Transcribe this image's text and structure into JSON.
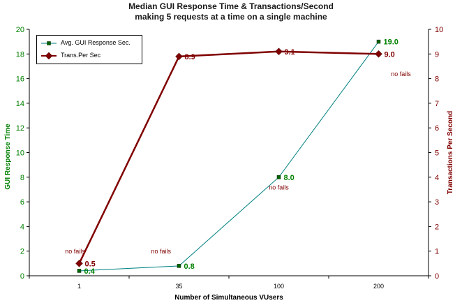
{
  "chart_data": {
    "type": "line",
    "title": "Median GUI Response Time & Transactions/Second",
    "subtitle": "making 5 requests at a time on a single machine",
    "xlabel": "Number of Simultaneous VUsers",
    "categories": [
      "1",
      "35",
      "100",
      "200"
    ],
    "y_left": {
      "label": "GUI Response Time",
      "range": [
        0,
        20
      ],
      "ticks": [
        0,
        2,
        4,
        6,
        8,
        10,
        12,
        14,
        16,
        18,
        20
      ],
      "color": "#008000"
    },
    "y_right": {
      "label": "Transactions Per Second",
      "range": [
        0,
        10
      ],
      "ticks": [
        0,
        1,
        2,
        3,
        4,
        5,
        6,
        7,
        8,
        9,
        10
      ],
      "color": "#800000"
    },
    "grid": false,
    "legend_position": "top-left",
    "series": [
      {
        "name": "Avg. GUI Response Sec.",
        "axis": "left",
        "color": "#008080",
        "label_color": "#008000",
        "values": [
          0.4,
          0.8,
          8.0,
          19.0
        ],
        "data_labels": [
          "0.4",
          "0.8",
          "8.0",
          "19.0"
        ]
      },
      {
        "name": "Trans.Per Sec",
        "axis": "right",
        "color": "#800000",
        "label_color": "#800000",
        "values": [
          0.5,
          8.9,
          9.1,
          9.0
        ],
        "data_labels": [
          "0.5",
          "8.9",
          "9.1",
          "9.0"
        ]
      }
    ],
    "annotations": [
      "no fails",
      "no fails",
      "no fails",
      "no fails"
    ]
  }
}
